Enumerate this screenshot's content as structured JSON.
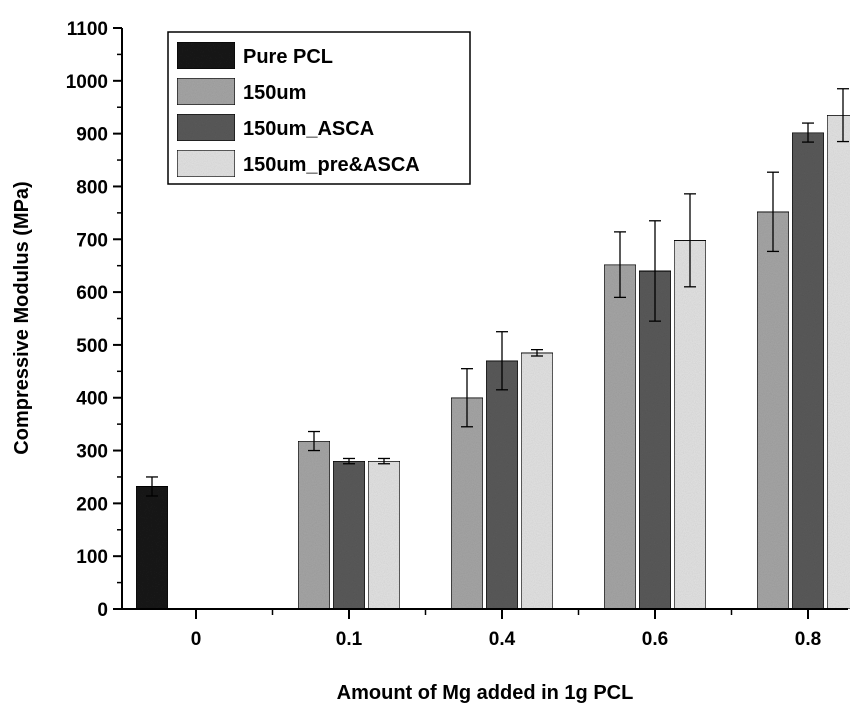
{
  "chart_data": {
    "type": "bar",
    "title": "",
    "xlabel": "Amount of Mg added in 1g PCL",
    "ylabel": "Compressive Modulus (MPa)",
    "ylim": [
      0,
      1100
    ],
    "yticks": [
      "0",
      "100",
      "200",
      "300",
      "400",
      "500",
      "600",
      "700",
      "800",
      "900",
      "1000",
      "1100"
    ],
    "categories": [
      "0",
      "0.1",
      "0.4",
      "0.6",
      "0.8"
    ],
    "legend_position": "top-left",
    "grid": false,
    "series": [
      {
        "name": "Pure PCL",
        "color": "#1a1a1a",
        "values": [
          232,
          null,
          null,
          null,
          null
        ],
        "errors": [
          18,
          null,
          null,
          null,
          null
        ]
      },
      {
        "name": "150um",
        "color": "#a6a6a6",
        "values": [
          null,
          318,
          400,
          652,
          752
        ],
        "errors": [
          null,
          18,
          55,
          62,
          75
        ]
      },
      {
        "name": "150um_ASCA",
        "color": "#5a5a5a",
        "values": [
          null,
          280,
          470,
          640,
          902
        ],
        "errors": [
          null,
          5,
          55,
          95,
          18
        ]
      },
      {
        "name": "150um_pre&ASCA",
        "color": "#e3e3e3",
        "values": [
          null,
          280,
          485,
          698,
          935
        ],
        "errors": [
          null,
          5,
          6,
          88,
          50
        ]
      }
    ]
  }
}
